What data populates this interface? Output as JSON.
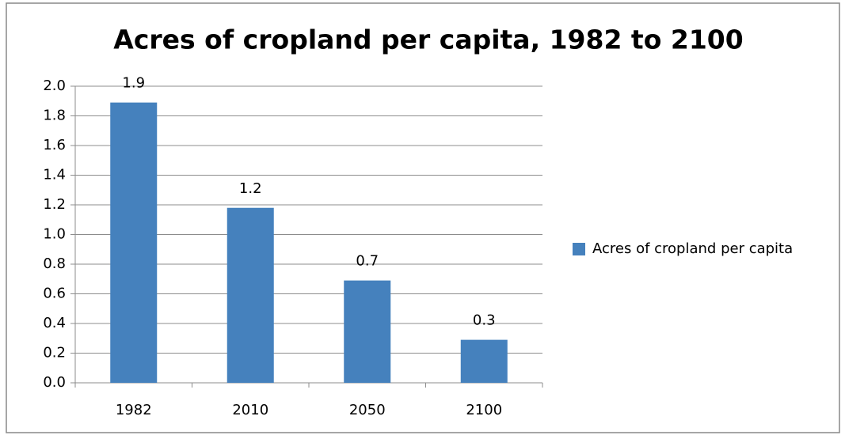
{
  "chart_data": {
    "type": "bar",
    "title": "Acres of cropland per capita, 1982 to 2100",
    "categories": [
      "1982",
      "2010",
      "2050",
      "2100"
    ],
    "series": [
      {
        "name": "Acres of cropland per capita",
        "color": "#4581bd",
        "values": [
          1.89,
          1.18,
          0.69,
          0.29
        ],
        "value_labels": [
          "1.9",
          "1.2",
          "0.7",
          "0.3"
        ]
      }
    ],
    "ylim": [
      0,
      2
    ],
    "yticks": [
      {
        "value": 0,
        "label": "0.0"
      },
      0.2,
      0.4,
      0.6,
      0.8,
      {
        "value": 1,
        "label": "1.0"
      },
      1.2,
      1.4,
      1.6,
      1.8,
      {
        "value": 2,
        "label": "2.0"
      }
    ],
    "grid": true,
    "legend": "right"
  }
}
